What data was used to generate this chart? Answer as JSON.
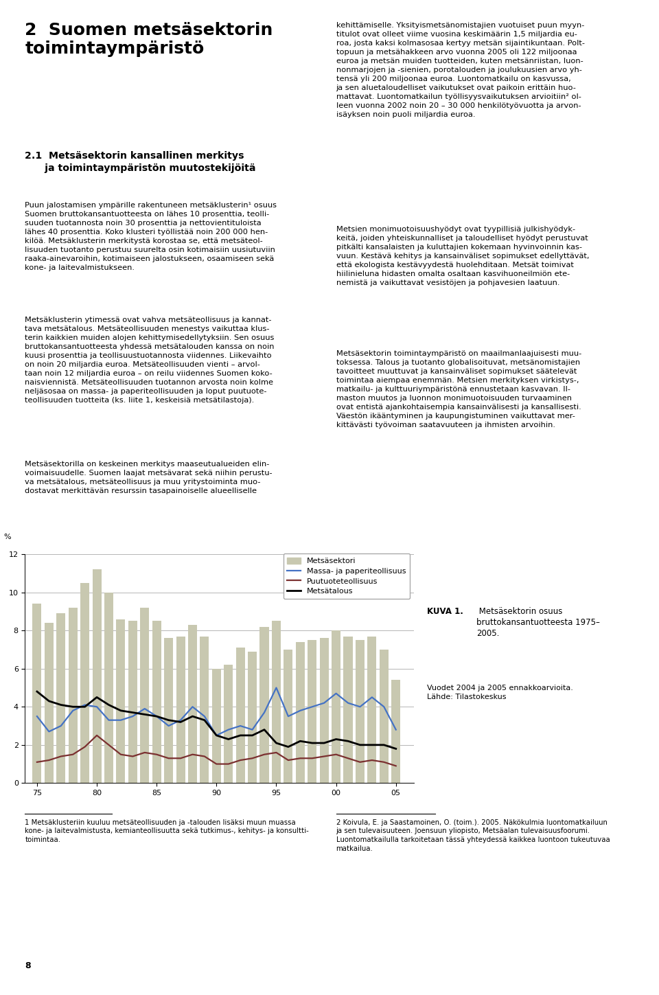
{
  "years": [
    1975,
    1976,
    1977,
    1978,
    1979,
    1980,
    1981,
    1982,
    1983,
    1984,
    1985,
    1986,
    1987,
    1988,
    1989,
    1990,
    1991,
    1992,
    1993,
    1994,
    1995,
    1996,
    1997,
    1998,
    1999,
    2000,
    2001,
    2002,
    2003,
    2004,
    2005
  ],
  "metsasektori": [
    9.4,
    8.4,
    8.9,
    9.2,
    10.5,
    11.2,
    10.0,
    8.6,
    8.5,
    9.2,
    8.5,
    7.6,
    7.7,
    8.3,
    7.7,
    6.0,
    6.2,
    7.1,
    6.9,
    8.2,
    8.5,
    7.0,
    7.4,
    7.5,
    7.6,
    8.0,
    7.7,
    7.5,
    7.7,
    7.0,
    5.4
  ],
  "massa_paperi": [
    3.5,
    2.7,
    3.0,
    3.8,
    4.1,
    4.0,
    3.3,
    3.3,
    3.5,
    3.9,
    3.5,
    3.0,
    3.3,
    4.0,
    3.5,
    2.5,
    2.8,
    3.0,
    2.8,
    3.7,
    5.0,
    3.5,
    3.8,
    4.0,
    4.2,
    4.7,
    4.2,
    4.0,
    4.5,
    4.0,
    2.8
  ],
  "puutuote": [
    1.1,
    1.2,
    1.4,
    1.5,
    1.9,
    2.5,
    2.0,
    1.5,
    1.4,
    1.6,
    1.5,
    1.3,
    1.3,
    1.5,
    1.4,
    1.0,
    1.0,
    1.2,
    1.3,
    1.5,
    1.6,
    1.2,
    1.3,
    1.3,
    1.4,
    1.5,
    1.3,
    1.1,
    1.2,
    1.1,
    0.9
  ],
  "metsatalous": [
    4.8,
    4.3,
    4.1,
    4.0,
    4.0,
    4.5,
    4.1,
    3.8,
    3.7,
    3.6,
    3.5,
    3.3,
    3.2,
    3.5,
    3.3,
    2.5,
    2.3,
    2.5,
    2.5,
    2.8,
    2.1,
    1.9,
    2.2,
    2.1,
    2.1,
    2.3,
    2.2,
    2.0,
    2.0,
    2.0,
    1.8
  ],
  "bar_color": "#c8c8b0",
  "massa_paperi_color": "#4472c4",
  "puutuote_color": "#7b3030",
  "metsatalous_color": "#000000",
  "legend_labels": [
    "Metsäsektori",
    "Massa- ja paperiteollisuus",
    "Puutuoteteollisuus",
    "Metsätalous"
  ],
  "kuva_bold": "KUVA 1.",
  "kuva_text": " Metsäsektorin osuus\nbruttokansantuotteesta 1975–\n2005.",
  "kuva_note": "Vuodet 2004 ja 2005 ennakkoarvioita.\nLähde: Tilastokeskus",
  "heading1": "2  Suomen metsäsektorin\ntoimintaympäristö",
  "heading2": "2.1  Metsäsektorin kansallinen merkitys\n     ja toimintaympäristön muutostekijöitä",
  "left_p1": "Puun jalostamisen ympärille rakentuneen metsäklusterin¹ osuus\nSuomen bruttokansantuotteesta on lähes 10 prosenttia, teolli-\nsuuden tuotannosta noin 30 prosenttia ja nettovientituloista\nlähes 40 prosenttia. Koko klusteri työllistää noin 200 000 hen-\nkilöä. Metsäklusterin merkitystä korostaa se, että metsäteol-\nlisuuden tuotanto perustuu suurelta osin kotimaisiin uusiutuviin\nraaka-ainevaroihin, kotimaiseen jalostukseen, osaamiseen sekä\nkone- ja laitevalmistukseen.",
  "left_p2": "Metsäklusterin ytimessä ovat vahva metsäteollisuus ja kannat-\ntava metsätalous. Metsäteollisuuden menestys vaikuttaa klus-\nterin kaikkien muiden alojen kehittymisedellytyksiin. Sen osuus\nbruttokansantuotteesta yhdessä metsätalouden kanssa on noin\nkuusi prosenttia ja teollisuustuotannosta viidennes. Liikevaihto\non noin 20 miljardia euroa. Metsäteollisuuden vienti – arvol-\ntaan noin 12 miljardia euroa – on reilu viidennes Suomen koko-\nnaisviennistä. Metsäteollisuuden tuotannon arvosta noin kolme\nneljäsosaa on massa- ja paperiteollisuuden ja loput puutuote-\nteollisuuden tuotteita (ks. liite 1, keskeisiä metsätilastoja).",
  "left_p3": "Metsäsektorilla on keskeinen merkitys maaseutualueiden elin-\nvoimaisuudelle. Suomen laajat metsävarat sekä niihin perustu-\nva metsätalous, metsäteollisuus ja muu yritystoiminta muo-\ndostavat merkittävän resurssin tasapainoiselle alueelliselle",
  "right_p1": "kehittämiselle. Yksityismetsänomistajien vuotuiset puun myyn-\ntitulot ovat olleet viime vuosina keskimäärin 1,5 miljardia eu-\nroa, josta kaksi kolmasosaa kertyy metsän sijaintikuntaan. Polt-\ntopuun ja metsähakkeen arvo vuonna 2005 oli 122 miljoonaa\neuroa ja metsän muiden tuotteiden, kuten metsänriistan, luon-\nnonmarjojen ja -sienien, porotalouden ja joulukuusien arvo yh-\ntensä yli 200 miljoonaa euroa. Luontomatkailu on kasvussa,\nja sen aluetaloudelliset vaikutukset ovat paikoin erittäin huo-\nmattavat. Luontomatkailun työllisyysvaikutuksen arvioitiin² ol-\nleen vuonna 2002 noin 20 – 30 000 henkilötyövuotta ja arvon-\nisäyksen noin puoli miljardia euroa.",
  "right_p2": "Metsien monimuotoisuushyödyt ovat tyypillisiä julkishyödyk-\nkeitä, joiden yhteiskunnalliset ja taloudelliset hyödyt perustuvat\npitkälti kansalaisten ja kuluttajien kokemaan hyvinvoinnin kas-\nvuun. Kestävä kehitys ja kansainväliset sopimukset edellyttävät,\nettä ekologista kestävyydestä huolehditaan. Metsät toimivat\nhiilinieluna hidasten omalta osaltaan kasvihuoneilmiön ete-\nnemistä ja vaikuttavat vesistöjen ja pohjavesien laatuun.",
  "right_p3": "Metsäsektorin toimintaympäristö on maailmanlaajuisesti muu-\ntoksessa. Talous ja tuotanto globalisoituvat, metsänomistajien\ntavoitteet muuttuvat ja kansainväliset sopimukset säätelevät\ntoimintaa aiempaa enemmän. Metsien merkityksen virkistys-,\nmatkailu- ja kulttuuriympäristönä ennustetaan kasvavan. Il-\nmaston muutos ja luonnon monimuotoisuuden turvaaminen\novat entistä ajankohtaisempia kansainvälisesti ja kansallisesti.\nVäestön ikääntyminen ja kaupungistuminen vaikuttavat mer-\nkittävästi työvoiman saatavuuteen ja ihmisten arvoihin.",
  "fn1": "1 Metsäklusteriin kuuluu metsäteollisuuden ja -talouden lisäksi muun muassa\nkone- ja laitevalmistusta, kemianteollisuutta sekä tutkimus-, kehitys- ja konsultti-\ntoimintaa.",
  "fn2": "2 Koivula, E. ja Saastamoinen, O. (toim.). 2005. Näkökulmia luontomatkailuun\nja sen tulevaisuuteen. Joensuun yliopisto, Metsäalan tulevaisuusfoorumi.\nLuontomatkailulla tarkoitetaan tässä yhteydessä kaikkea luontoon tukeutuvaa\nmatkailua.",
  "page_num": "8"
}
